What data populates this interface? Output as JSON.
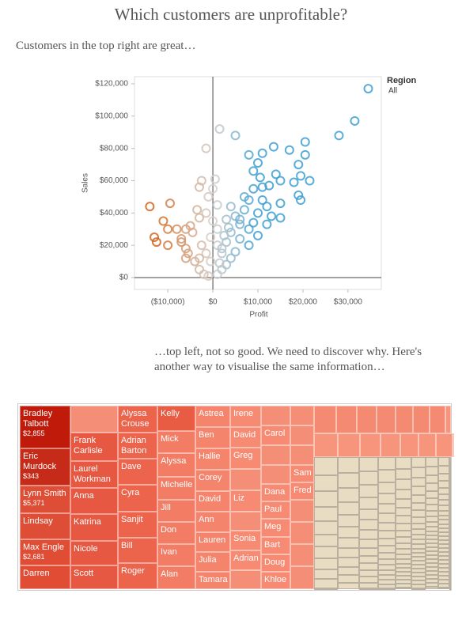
{
  "title": "Which customers are unprofitable?",
  "subtitle": "Customers in the top right are great…",
  "caption": "…top left, not so good. We need to discover why. Here's another way to visualise the same information…",
  "chart_data": [
    {
      "type": "scatter",
      "x_label": "Profit",
      "y_label": "Sales",
      "legend_title": "Region",
      "legend_value": "All",
      "color_scale": [
        "#d2661e",
        "#d6d0cc",
        "#3e9fd2"
      ],
      "xlim": [
        -17400,
        37400
      ],
      "ylim": [
        -7350,
        124400
      ],
      "xticks": [
        {
          "value": -10000,
          "label": "($10,000)"
        },
        {
          "value": 0,
          "label": "$0"
        },
        {
          "value": 10000,
          "label": "$10,000"
        },
        {
          "value": 20000,
          "label": "$20,000"
        },
        {
          "value": 30000,
          "label": "$30,000"
        }
      ],
      "yticks": [
        {
          "value": 0,
          "label": "$0"
        },
        {
          "value": 20000,
          "label": "$20,000"
        },
        {
          "value": 40000,
          "label": "$40,000"
        },
        {
          "value": 60000,
          "label": "$60,000"
        },
        {
          "value": 80000,
          "label": "$80,000"
        },
        {
          "value": 100000,
          "label": "$100,000"
        },
        {
          "value": 120000,
          "label": "$120,000"
        }
      ],
      "x": [
        -14000,
        -9500,
        -11000,
        -13000,
        -12500,
        -10000,
        -10000,
        -8000,
        -7000,
        -6000,
        -5000,
        -3500,
        -3000,
        -6000,
        -5500,
        -6000,
        -4000,
        -3000,
        -2000,
        -1000,
        -7000,
        -4500,
        -2500,
        -1500,
        -500,
        -3000,
        -1500,
        1500,
        5000,
        -2500,
        500,
        -1000,
        1000,
        -1500,
        0,
        1000,
        -500,
        1000,
        2000,
        -3000,
        0,
        34500,
        31500,
        28000,
        20500,
        20500,
        17000,
        13500,
        11000,
        8000,
        10000,
        9000,
        19000,
        14000,
        21500,
        19500,
        18000,
        15000,
        12500,
        10500,
        11000,
        9000,
        19000,
        19500,
        15000,
        15000,
        12000,
        8000,
        10000,
        12000,
        7000,
        4000,
        5000,
        3000,
        6000,
        8000,
        10000,
        4000,
        6000,
        3000,
        2000,
        5000,
        8000,
        4000,
        3000,
        2000,
        1000,
        6000,
        9000,
        7000,
        11000,
        13000,
        3500,
        2500,
        1500
      ],
      "y": [
        44000,
        46000,
        35000,
        25000,
        22000,
        20000,
        30000,
        30000,
        24000,
        30000,
        32000,
        42000,
        37000,
        18000,
        15000,
        12000,
        10000,
        5000,
        2000,
        1000,
        22000,
        28000,
        20000,
        15000,
        10000,
        12000,
        80000,
        92000,
        88000,
        60000,
        61000,
        50000,
        45000,
        40000,
        35000,
        30000,
        25000,
        20000,
        15000,
        56000,
        55000,
        117000,
        97000,
        88000,
        84000,
        76000,
        79000,
        81000,
        77000,
        76000,
        71000,
        66000,
        70000,
        64000,
        60000,
        63000,
        59000,
        60000,
        57000,
        62000,
        56000,
        55000,
        51000,
        48000,
        46000,
        37000,
        44000,
        48000,
        40000,
        33000,
        42000,
        44000,
        38000,
        36000,
        33000,
        30000,
        26000,
        28000,
        24000,
        22000,
        18000,
        16000,
        20000,
        12000,
        8000,
        5000,
        2000,
        36000,
        34000,
        50000,
        48000,
        38000,
        31000,
        26000,
        9000
      ]
    },
    {
      "type": "treemap",
      "cells": [
        {
          "name": "Bradley Talbott",
          "value": 2855,
          "value_label": "$2,855",
          "color": "#c01a0a"
        },
        {
          "name": "Eric Murdock",
          "value": 343,
          "value_label": "$343",
          "color": "#c62a18"
        },
        {
          "name": "Lynn Smith",
          "value": 5371,
          "value_label": "$5,371",
          "color": "#de4e36"
        },
        {
          "name": "Lindsay",
          "color": "#de4e36"
        },
        {
          "name": "Max Engle",
          "value": 2681,
          "value_label": "$2,681",
          "color": "#e04c34"
        },
        {
          "name": "Darren",
          "color": "#e04c34"
        },
        {
          "name": "Frank Carlisle",
          "color": "#e65842"
        },
        {
          "name": "Laurel Workman",
          "color": "#e65842"
        },
        {
          "name": "Anna",
          "color": "#e65842"
        },
        {
          "name": "Katrina",
          "color": "#e65842"
        },
        {
          "name": "Nicole",
          "color": "#e65842"
        },
        {
          "name": "Scott",
          "color": "#e65842"
        },
        {
          "name": "Alyssa Crouse",
          "color": "#ec644c"
        },
        {
          "name": "Adrian Barton",
          "color": "#ec644c"
        },
        {
          "name": "Dave",
          "color": "#ec644c"
        },
        {
          "name": "Cyra",
          "color": "#ec644c"
        },
        {
          "name": "Sanjit",
          "color": "#ec644c"
        },
        {
          "name": "Bill",
          "color": "#ec644c"
        },
        {
          "name": "Roger",
          "color": "#ec644c"
        },
        {
          "name": "Kelly",
          "color": "#e85c44"
        },
        {
          "name": "Mick",
          "color": "#f37c64"
        },
        {
          "name": "Alyssa",
          "color": "#f37c64"
        },
        {
          "name": "Michelle",
          "color": "#f37c64"
        },
        {
          "name": "Jill",
          "color": "#f37c64"
        },
        {
          "name": "Don",
          "color": "#f37c64"
        },
        {
          "name": "Ivan",
          "color": "#f37c64"
        },
        {
          "name": "Alan",
          "color": "#f37c64"
        },
        {
          "name": "Astrea",
          "color": "#f5846c"
        },
        {
          "name": "Ben",
          "color": "#f5846c"
        },
        {
          "name": "Hallie",
          "color": "#f5846c"
        },
        {
          "name": "Corey",
          "color": "#f5846c"
        },
        {
          "name": "David",
          "color": "#f5846c"
        },
        {
          "name": "Ann",
          "color": "#f5846c"
        },
        {
          "name": "Lauren",
          "color": "#f5846c"
        },
        {
          "name": "Julia",
          "color": "#f5846c"
        },
        {
          "name": "Tamara",
          "color": "#f5846c"
        },
        {
          "name": "Irene",
          "color": "#f68a72"
        },
        {
          "name": "David",
          "color": "#f68a72"
        },
        {
          "name": "Greg",
          "color": "#f68a72"
        },
        {
          "name": "Liz",
          "color": "#f68a72"
        },
        {
          "name": "Sonia",
          "color": "#f68a72"
        },
        {
          "name": "Adrian",
          "color": "#f68a72"
        },
        {
          "name": "Carol",
          "color": "#f68a72"
        },
        {
          "name": "Dana",
          "color": "#f68a72"
        },
        {
          "name": "Paul",
          "color": "#f68a72"
        },
        {
          "name": "Meg",
          "color": "#f68a72"
        },
        {
          "name": "Bart",
          "color": "#f68a72"
        },
        {
          "name": "Doug",
          "color": "#f68a72"
        },
        {
          "name": "Khloe",
          "color": "#f68a72"
        },
        {
          "name": "Sam",
          "color": "#f68a72"
        },
        {
          "name": "Fred",
          "color": "#f68a72"
        }
      ]
    }
  ]
}
